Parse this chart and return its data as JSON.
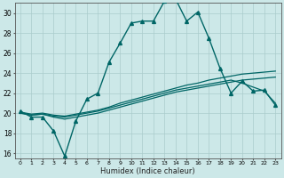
{
  "title": "",
  "xlabel": "Humidex (Indice chaleur)",
  "x_ticks": [
    0,
    1,
    2,
    3,
    4,
    5,
    6,
    7,
    8,
    9,
    10,
    11,
    12,
    13,
    14,
    15,
    16,
    17,
    18,
    19,
    20,
    21,
    22,
    23
  ],
  "ylim": [
    15.5,
    31.0
  ],
  "xlim": [
    -0.5,
    23.5
  ],
  "yticks": [
    16,
    18,
    20,
    22,
    24,
    26,
    28,
    30
  ],
  "bg_color": "#cce8e8",
  "line_color": "#006666",
  "grid_color": "#aacccc",
  "lines": [
    {
      "x": [
        0,
        1,
        2,
        3,
        4,
        5,
        6,
        7,
        8,
        9,
        10,
        11,
        12,
        13,
        14,
        15,
        16,
        17,
        18,
        19,
        20,
        21,
        22,
        23
      ],
      "y": [
        20.2,
        19.6,
        19.6,
        18.2,
        15.7,
        19.2,
        21.4,
        22.0,
        25.1,
        27.0,
        29.0,
        29.2,
        29.2,
        31.2,
        31.4,
        29.2,
        30.1,
        27.5,
        24.5,
        22.0,
        23.2,
        22.2,
        22.3,
        20.8
      ],
      "marker": "^",
      "markersize": 2.8,
      "linewidth": 1.0
    },
    {
      "x": [
        0,
        1,
        2,
        3,
        4,
        5,
        6,
        7,
        8,
        9,
        10,
        11,
        12,
        13,
        14,
        15,
        16,
        17,
        18,
        19,
        20,
        21,
        22,
        23
      ],
      "y": [
        20.0,
        19.8,
        19.9,
        19.7,
        19.6,
        19.8,
        20.0,
        20.2,
        20.5,
        20.8,
        21.1,
        21.4,
        21.7,
        22.0,
        22.3,
        22.5,
        22.7,
        22.9,
        23.1,
        23.3,
        23.0,
        22.6,
        22.2,
        21.0
      ],
      "marker": null,
      "markersize": 0,
      "linewidth": 0.9
    },
    {
      "x": [
        0,
        1,
        2,
        3,
        4,
        5,
        6,
        7,
        8,
        9,
        10,
        11,
        12,
        13,
        14,
        15,
        16,
        17,
        18,
        19,
        20,
        21,
        22,
        23
      ],
      "y": [
        20.1,
        19.9,
        20.0,
        19.8,
        19.7,
        19.9,
        20.1,
        20.3,
        20.6,
        21.0,
        21.3,
        21.6,
        21.9,
        22.2,
        22.5,
        22.8,
        23.0,
        23.3,
        23.5,
        23.7,
        23.9,
        24.0,
        24.1,
        24.2
      ],
      "marker": null,
      "markersize": 0,
      "linewidth": 0.9
    },
    {
      "x": [
        0,
        1,
        2,
        3,
        4,
        5,
        6,
        7,
        8,
        9,
        10,
        11,
        12,
        13,
        14,
        15,
        16,
        17,
        18,
        19,
        20,
        21,
        22,
        23
      ],
      "y": [
        20.0,
        19.8,
        19.9,
        19.6,
        19.4,
        19.6,
        19.8,
        20.0,
        20.3,
        20.6,
        20.9,
        21.2,
        21.5,
        21.8,
        22.1,
        22.3,
        22.5,
        22.7,
        22.9,
        23.1,
        23.3,
        23.4,
        23.5,
        23.6
      ],
      "marker": null,
      "markersize": 0,
      "linewidth": 0.9
    }
  ]
}
